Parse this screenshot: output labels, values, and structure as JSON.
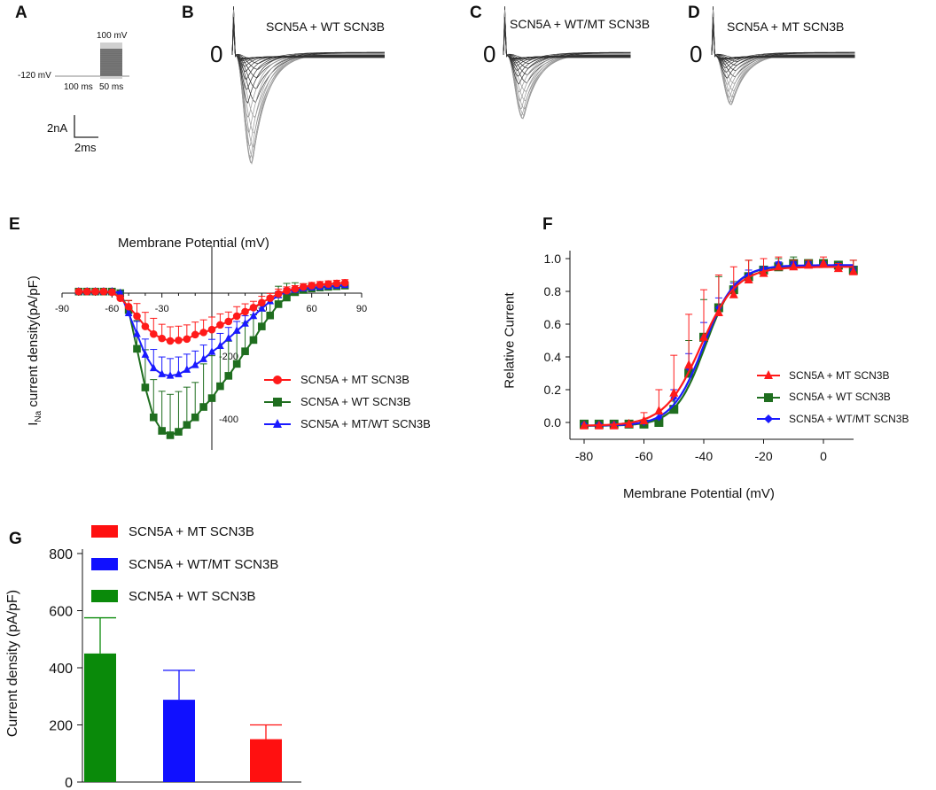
{
  "panels": {
    "A": "A",
    "B": "B",
    "C": "C",
    "D": "D",
    "E": "E",
    "F": "F",
    "G": "G"
  },
  "protocol": {
    "hold": "-120 mV",
    "step": "100 mV",
    "dur1": "100 ms",
    "dur2": "50 ms",
    "scale_current": "2nA",
    "scale_time": "2ms"
  },
  "colors": {
    "mt": "#ff1a1a",
    "wt": "#1f6e1f",
    "mix": "#1a1aff",
    "wt_bar": "#0a8a0a",
    "mix_bar": "#1010ff",
    "mt_bar": "#ff1010",
    "trace": "#333333"
  },
  "chart_data": [
    {
      "panel": "B",
      "type": "line",
      "title": "SCN5A + WT SCN3B",
      "zero_label": "0",
      "n_sweeps": 28,
      "peak_scale": 1.0
    },
    {
      "panel": "C",
      "type": "line",
      "title": "SCN5A + WT/MT SCN3B",
      "zero_label": "0",
      "n_sweeps": 28,
      "peak_scale": 0.58
    },
    {
      "panel": "D",
      "type": "line",
      "title": "SCN5A + MT SCN3B",
      "zero_label": "0",
      "n_sweeps": 28,
      "peak_scale": 0.45
    },
    {
      "panel": "E",
      "type": "line",
      "title": "Membrane Potential (mV)",
      "xlabel": "Membrane Potential (mV)",
      "ylabel_main": "I",
      "ylabel_sub": "Na",
      "ylabel_rest": " current density(pA/pF)",
      "xlim": [
        -90,
        90
      ],
      "ylim": [
        -480,
        60
      ],
      "xticks": [
        -90,
        -60,
        -30,
        30,
        60,
        90
      ],
      "yticks": [
        -200,
        -400
      ],
      "x": [
        -80,
        -75,
        -70,
        -65,
        -60,
        -55,
        -50,
        -45,
        -40,
        -35,
        -30,
        -25,
        -20,
        -15,
        -10,
        -5,
        0,
        5,
        10,
        15,
        20,
        25,
        30,
        35,
        40,
        45,
        50,
        55,
        60,
        65,
        70,
        75,
        80
      ],
      "series": [
        {
          "name": "SCN5A + WT SCN3B",
          "key": "wt",
          "marker": "square",
          "values": [
            5,
            5,
            5,
            5,
            5,
            0,
            -54,
            -177,
            -300,
            -395,
            -438,
            -452,
            -441,
            -419,
            -395,
            -362,
            -334,
            -296,
            -263,
            -225,
            -185,
            -149,
            -106,
            -71,
            -35,
            -14,
            3,
            10,
            15,
            18,
            20,
            22,
            24
          ],
          "error": [
            3,
            3,
            3,
            3,
            3,
            5,
            30,
            90,
            120,
            120,
            126,
            130,
            128,
            120,
            111,
            137,
            135,
            120,
            110,
            100,
            90,
            80,
            70,
            60,
            57,
            45,
            30,
            20,
            15,
            12,
            10,
            10,
            10
          ]
        },
        {
          "name": "SCN5A + MT/WT SCN3B",
          "key": "mix",
          "marker": "triangle",
          "values": [
            5,
            5,
            5,
            5,
            5,
            0,
            -64,
            -130,
            -196,
            -239,
            -258,
            -263,
            -258,
            -244,
            -229,
            -210,
            -187,
            -168,
            -144,
            -120,
            -97,
            -73,
            -49,
            -26,
            -7,
            5,
            10,
            15,
            18,
            20,
            22,
            24,
            26
          ],
          "error": [
            3,
            3,
            3,
            3,
            3,
            5,
            20,
            40,
            50,
            60,
            55,
            55,
            55,
            50,
            45,
            45,
            40,
            40,
            35,
            30,
            25,
            20,
            20,
            15,
            12,
            10,
            8,
            8,
            8,
            8,
            8,
            8,
            8
          ]
        },
        {
          "name": "SCN5A + MT SCN3B",
          "key": "mt",
          "marker": "circle",
          "values": [
            5,
            5,
            5,
            5,
            3,
            -16,
            -43,
            -73,
            -106,
            -130,
            -144,
            -152,
            -150,
            -146,
            -132,
            -125,
            -116,
            -101,
            -90,
            -73,
            -59,
            -46,
            -30,
            -16,
            -2,
            8,
            14,
            20,
            24,
            27,
            29,
            31,
            33
          ],
          "error": [
            3,
            3,
            3,
            3,
            3,
            10,
            20,
            40,
            45,
            50,
            45,
            45,
            45,
            45,
            40,
            40,
            40,
            35,
            30,
            30,
            25,
            20,
            20,
            15,
            15,
            12,
            10,
            10,
            10,
            10,
            10,
            10,
            10
          ]
        }
      ],
      "legend": [
        "SCN5A + MT SCN3B",
        "SCN5A + WT SCN3B",
        "SCN5A + MT/WT SCN3B"
      ],
      "legend_position": "bottom-right"
    },
    {
      "panel": "F",
      "type": "line",
      "xlabel": "Membrane Potential (mV)",
      "ylabel": "Relative Current",
      "xlim": [
        -85,
        10
      ],
      "ylim": [
        -0.1,
        1.05
      ],
      "xticks": [
        -80,
        -60,
        -40,
        -20,
        0
      ],
      "yticks": [
        0.0,
        0.2,
        0.4,
        0.6,
        0.8,
        1.0
      ],
      "x": [
        -80,
        -75,
        -70,
        -65,
        -60,
        -55,
        -50,
        -45,
        -40,
        -35,
        -30,
        -25,
        -20,
        -15,
        -10,
        -5,
        0,
        5,
        10
      ],
      "series": [
        {
          "name": "SCN5A + WT SCN3B",
          "key": "wt",
          "marker": "square",
          "fit": {
            "v_half": -39.5,
            "k": 5.0,
            "max": 0.955
          },
          "values": [
            -0.01,
            -0.01,
            -0.01,
            -0.01,
            -0.01,
            0.0,
            0.08,
            0.3,
            0.52,
            0.7,
            0.81,
            0.89,
            0.93,
            0.95,
            0.97,
            0.97,
            0.97,
            0.96,
            0.93
          ],
          "error": [
            0,
            0,
            0,
            0,
            0,
            0,
            0.05,
            0.2,
            0.23,
            0.19,
            0.05,
            0.1,
            0.07,
            0.05,
            0.04,
            0.02,
            0.02,
            0.02,
            0.06
          ]
        },
        {
          "name": "SCN5A + WT/MT SCN3B",
          "key": "mix",
          "marker": "diamond",
          "fit": {
            "v_half": -40.0,
            "k": 5.3,
            "max": 0.96
          },
          "values": [
            -0.01,
            -0.01,
            -0.01,
            -0.01,
            0.0,
            0.03,
            0.15,
            0.33,
            0.52,
            0.7,
            0.82,
            0.9,
            0.93,
            0.97,
            0.97,
            0.97,
            0.97,
            0.96,
            0.93
          ],
          "error": [
            0,
            0,
            0,
            0,
            0,
            0.02,
            0.05,
            0.09,
            0.09,
            0.06,
            0.03,
            0.03,
            0.02,
            0.01,
            0.01,
            0.01,
            0.01,
            0.01,
            0.02
          ]
        },
        {
          "name": "SCN5A + MT SCN3B",
          "key": "mt",
          "marker": "triangle",
          "fit": {
            "v_half": -41.0,
            "k": 6.0,
            "max": 0.95
          },
          "values": [
            -0.02,
            -0.02,
            -0.02,
            -0.01,
            0.01,
            0.07,
            0.18,
            0.35,
            0.52,
            0.67,
            0.78,
            0.87,
            0.91,
            0.95,
            0.95,
            0.96,
            0.97,
            0.94,
            0.92
          ],
          "error": [
            0,
            0,
            0,
            0,
            0.05,
            0.13,
            0.23,
            0.31,
            0.29,
            0.23,
            0.17,
            0.12,
            0.09,
            0.06,
            0.04,
            0.03,
            0.04,
            0.03,
            0.07
          ]
        }
      ],
      "legend": [
        "SCN5A + MT SCN3B",
        "SCN5A + WT SCN3B",
        "SCN5A + WT/MT SCN3B"
      ],
      "legend_position": "bottom-right"
    },
    {
      "panel": "G",
      "type": "bar",
      "ylabel": "Current density (pA/pF)",
      "ylim": [
        0,
        800
      ],
      "yticks": [
        0,
        200,
        400,
        600,
        800
      ],
      "categories": [
        "SCN5A + WT SCN3B",
        "SCN5A + WT/MT SCN3B",
        "SCN5A + MT SCN3B"
      ],
      "keys": [
        "wt_bar",
        "mix_bar",
        "mt_bar"
      ],
      "values": [
        450,
        288,
        150
      ],
      "error": [
        125,
        103,
        50
      ],
      "legend": [
        "SCN5A + MT SCN3B",
        "SCN5A + WT/MT SCN3B",
        "SCN5A + WT SCN3B"
      ],
      "legend_position": "top"
    }
  ]
}
